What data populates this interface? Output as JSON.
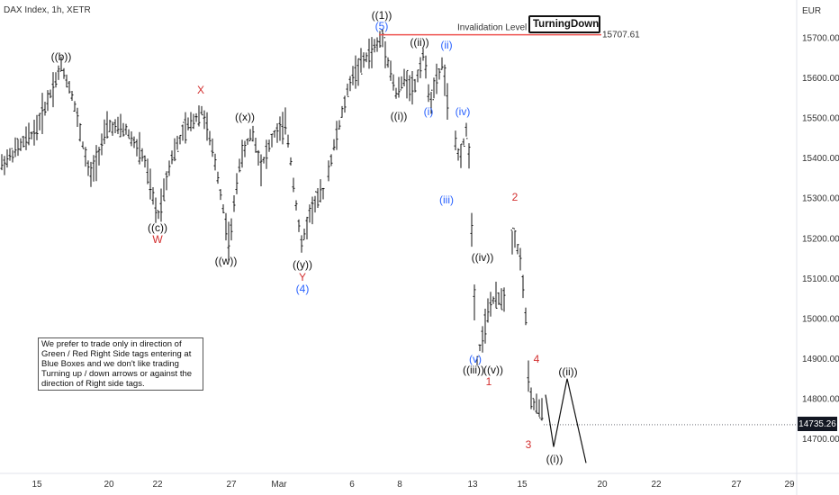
{
  "header": {
    "title": "DAX Index, 1h, XETR"
  },
  "currency": "EUR",
  "last_price": "14735.26",
  "brand": {
    "name": "TurningDown",
    "icon": "trend-down-arrow-icon"
  },
  "note": "We prefer to trade only in direction of Green / Red Right Side tags entering at Blue Boxes and we don't like trading Turning up / down arrows or against the direction of Right side tags.",
  "colors": {
    "black_labels": "#111111",
    "red_labels": "#d32f2f",
    "blue_labels": "#2962ff",
    "invalidation_line": "#ef5350"
  },
  "chart_data": {
    "type": "ohlc",
    "title": "DAX Index, 1h, XETR",
    "y_unit": "EUR",
    "ylim": [
      14620,
      15790
    ],
    "y_ticks": [
      14700,
      14800,
      14900,
      15000,
      15100,
      15200,
      15300,
      15400,
      15500,
      15600,
      15700
    ],
    "x_ticks": [
      "15",
      "20",
      "22",
      "27",
      "Mar",
      "6",
      "8",
      "13",
      "15",
      "20",
      "22",
      "27",
      "29"
    ],
    "last_price": 14735.26,
    "invalidation": {
      "label": "Invalidation Level",
      "value": 15707.61,
      "value_label": "15707.61"
    },
    "waves": [
      {
        "text": "((b))",
        "color": "black",
        "x": "Feb 16",
        "y": 15638
      },
      {
        "text": "((c))",
        "color": "black",
        "x": "Feb 21",
        "y": 15250
      },
      {
        "text": "W",
        "color": "red",
        "x": "Feb 21",
        "y": 15250
      },
      {
        "text": "X",
        "color": "red",
        "x": "Feb 24",
        "y": 15560
      },
      {
        "text": "((x))",
        "color": "black",
        "x": "Feb 27",
        "y": 15480
      },
      {
        "text": "((w))",
        "color": "black",
        "x": "Feb 27",
        "y": 15165
      },
      {
        "text": "((y))",
        "color": "black",
        "x": "Mar 2",
        "y": 15160
      },
      {
        "text": "Y",
        "color": "red",
        "x": "Mar 2",
        "y": 15160
      },
      {
        "text": "(4)",
        "color": "blue",
        "x": "Mar 2",
        "y": 15160
      },
      {
        "text": "((1))",
        "color": "black",
        "x": "Mar 7",
        "y": 15710
      },
      {
        "text": "(5)",
        "color": "blue",
        "x": "Mar 7",
        "y": 15710
      },
      {
        "text": "((i))",
        "color": "black",
        "x": "Mar 8",
        "y": 15550
      },
      {
        "text": "((ii))",
        "color": "black",
        "x": "Mar 9",
        "y": 15665
      },
      {
        "text": "(i)",
        "color": "blue",
        "x": "Mar 9",
        "y": 15570
      },
      {
        "text": "(ii)",
        "color": "blue",
        "x": "Mar 10",
        "y": 15655
      },
      {
        "text": "(iii)",
        "color": "blue",
        "x": "Mar 10",
        "y": 15330
      },
      {
        "text": "(iv)",
        "color": "blue",
        "x": "Mar 10",
        "y": 15490
      },
      {
        "text": "((iv))",
        "color": "black",
        "x": "Mar 13",
        "y": 15125
      },
      {
        "text": "(v)",
        "color": "blue",
        "x": "Mar 13",
        "y": 14880
      },
      {
        "text": "((iii))",
        "color": "black",
        "x": "Mar 13",
        "y": 14870
      },
      {
        "text": "((v))",
        "color": "black",
        "x": "Mar 13",
        "y": 14870
      },
      {
        "text": "1",
        "color": "red",
        "x": "Mar 13",
        "y": 14870
      },
      {
        "text": "2",
        "color": "red",
        "x": "Mar 14",
        "y": 15270
      },
      {
        "text": "3",
        "color": "red",
        "x": "Mar 15",
        "y": 14700
      },
      {
        "text": "4",
        "color": "red",
        "x": "Mar 15",
        "y": 14870
      },
      {
        "text": "((i))",
        "color": "black",
        "x": "Mar 16",
        "y": 14680
      },
      {
        "text": "((ii))",
        "color": "black",
        "x": "Mar 16",
        "y": 14850
      }
    ],
    "projection": {
      "x": [
        "Mar 15",
        "Mar 16",
        "Mar 16",
        "Mar 17"
      ],
      "y": [
        14810,
        14680,
        14850,
        14640
      ]
    }
  }
}
